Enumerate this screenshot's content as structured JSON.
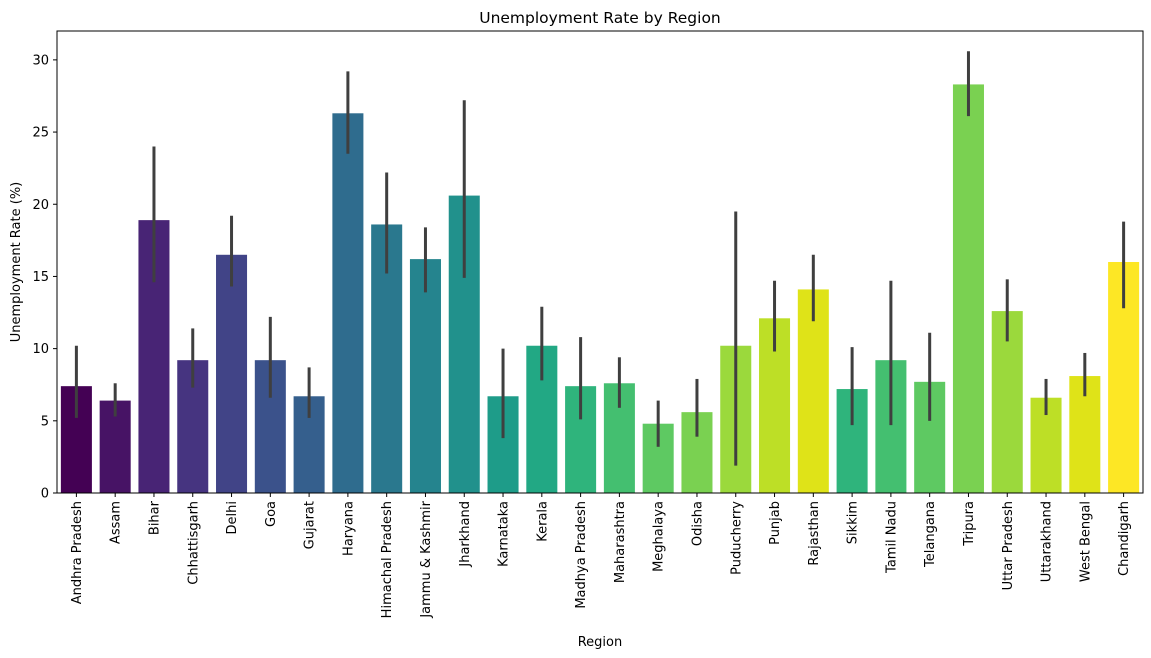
{
  "chart_data": {
    "type": "bar",
    "title": "Unemployment Rate by Region",
    "xlabel": "Region",
    "ylabel": "Unemployment Rate (%)",
    "ylim": [
      0,
      32
    ],
    "yticks": [
      0,
      5,
      10,
      15,
      20,
      25,
      30
    ],
    "grid": false,
    "categories": [
      "Andhra Pradesh",
      "Assam",
      "Bihar",
      "Chhattisgarh",
      "Delhi",
      "Goa",
      "Gujarat",
      "Haryana",
      "Himachal Pradesh",
      "Jammu & Kashmir",
      "Jharkhand",
      "Karnataka",
      "Kerala",
      "Madhya Pradesh",
      "Maharashtra",
      "Meghalaya",
      "Odisha",
      "Puducherry",
      "Punjab",
      "Rajasthan",
      "Sikkim",
      "Tamil Nadu",
      "Telangana",
      "Tripura",
      "Uttar Pradesh",
      "Uttarakhand",
      "West Bengal",
      "Chandigarh"
    ],
    "values": [
      7.4,
      6.4,
      18.9,
      9.2,
      16.5,
      9.2,
      6.7,
      26.3,
      18.6,
      16.2,
      20.6,
      6.7,
      10.2,
      7.4,
      7.6,
      4.8,
      5.6,
      10.2,
      12.1,
      14.1,
      7.2,
      9.2,
      7.7,
      28.3,
      12.6,
      6.6,
      8.1,
      16.0
    ],
    "error_low": [
      5.2,
      5.3,
      14.6,
      7.3,
      14.3,
      6.6,
      5.2,
      23.5,
      15.2,
      13.9,
      14.9,
      3.8,
      7.8,
      5.1,
      5.9,
      3.2,
      3.9,
      1.9,
      9.8,
      11.9,
      4.7,
      4.7,
      5.0,
      26.1,
      10.5,
      5.4,
      6.7,
      12.8
    ],
    "error_high": [
      10.2,
      7.6,
      24.0,
      11.4,
      19.2,
      12.2,
      8.7,
      29.2,
      22.2,
      18.4,
      27.2,
      10.0,
      12.9,
      10.8,
      9.4,
      6.4,
      7.9,
      19.5,
      14.7,
      16.5,
      10.1,
      14.7,
      11.1,
      30.6,
      14.8,
      7.9,
      9.7,
      18.8
    ],
    "colors": [
      "#440154",
      "#471365",
      "#482475",
      "#463480",
      "#414487",
      "#3b528b",
      "#355f8d",
      "#2f6c8e",
      "#2a788e",
      "#25848e",
      "#21918c",
      "#1e9c89",
      "#22a884",
      "#2fb47c",
      "#44bf70",
      "#5ec962",
      "#7ad151",
      "#9bd93c",
      "#bddf26",
      "#dfe318",
      "#2fb47c",
      "#44bf70",
      "#5ec962",
      "#7ad151",
      "#9bd93c",
      "#bddf26",
      "#dfe318",
      "#fde725"
    ],
    "error_color": "#3f3f3f"
  }
}
